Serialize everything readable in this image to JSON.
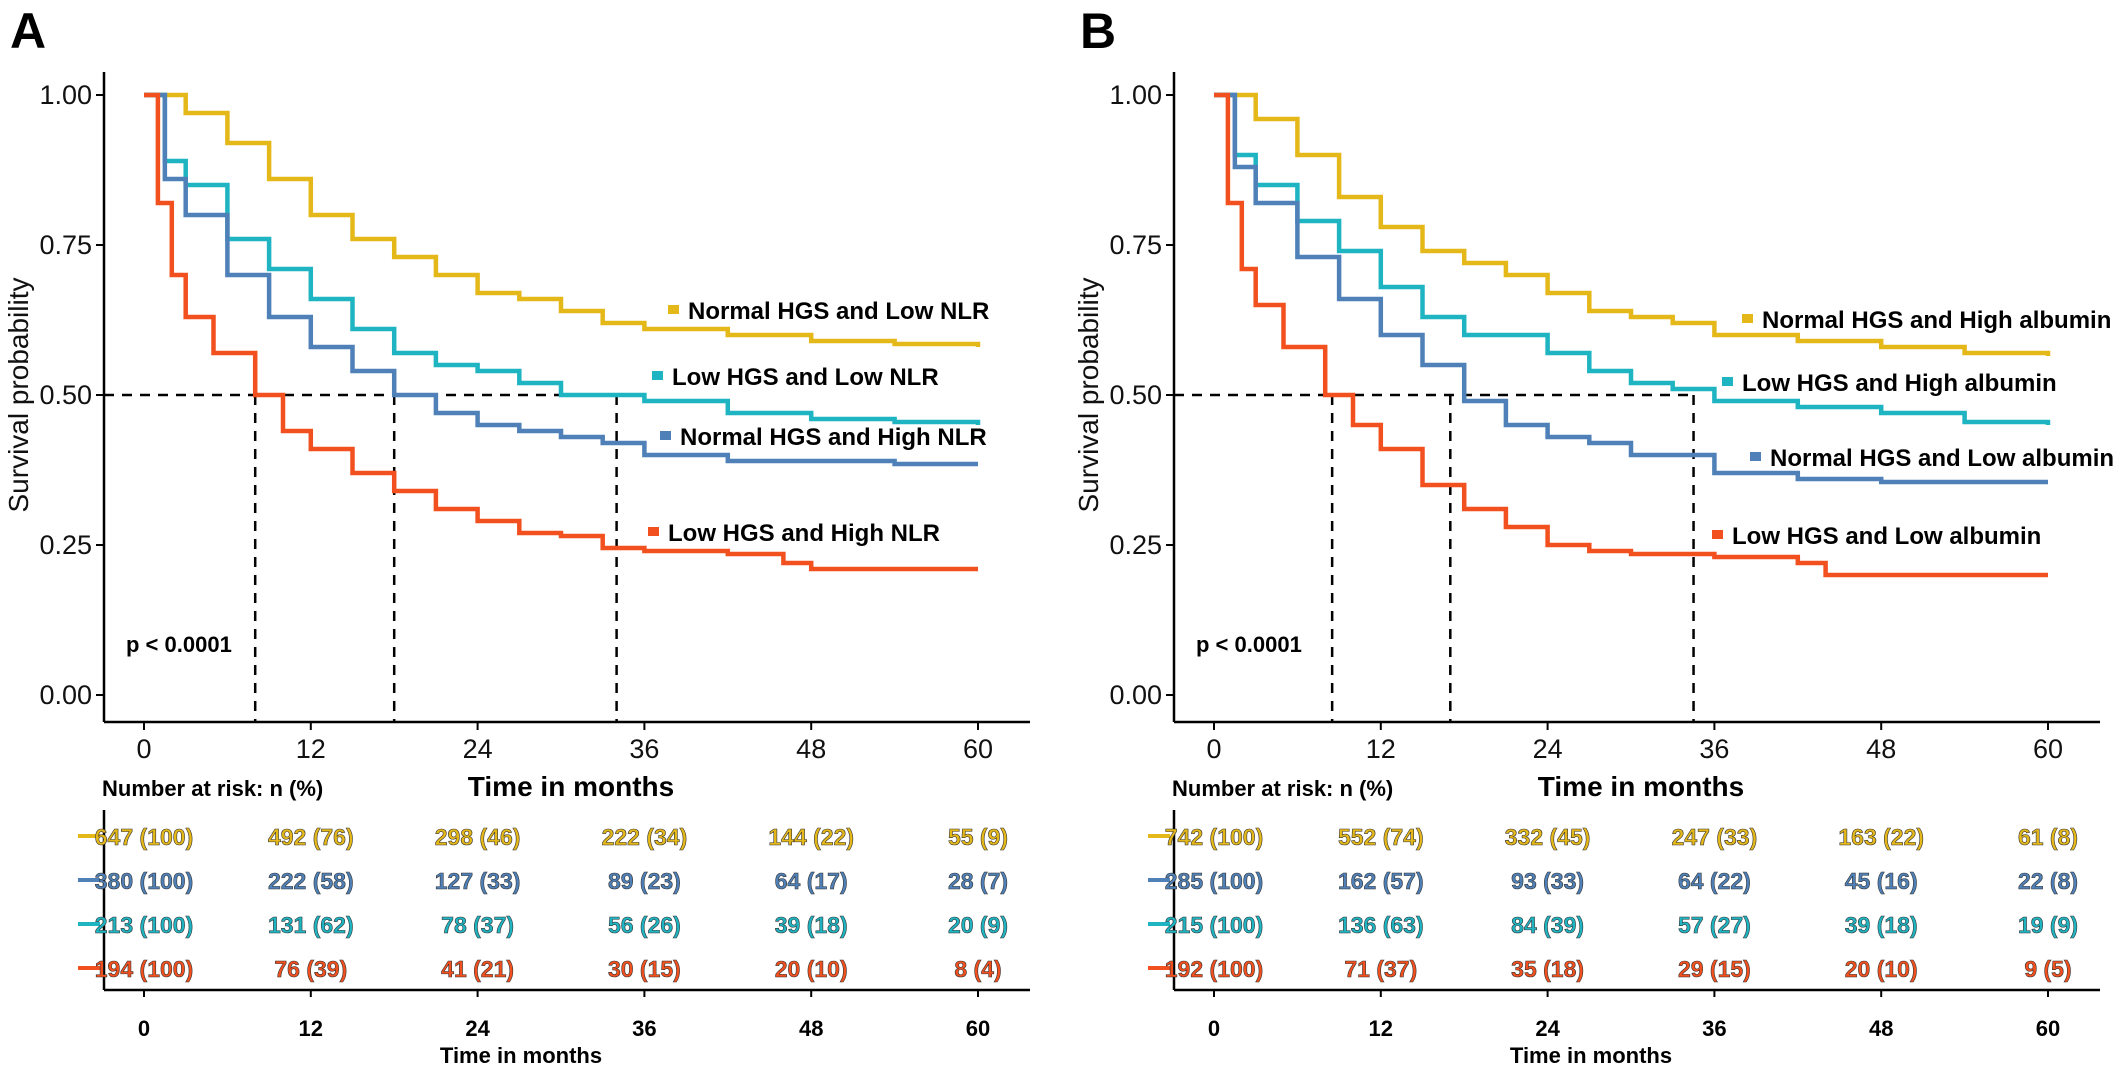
{
  "colors": {
    "gold": "#E5B81A",
    "steel": "#4F81B8",
    "teal": "#1FB4C2",
    "orange": "#F2501E"
  },
  "chart_data": [
    {
      "type": "line",
      "panel_label": "A",
      "ylabel": "Survival probability",
      "xlabel": "Time in months",
      "x_ticks": [
        0,
        12,
        24,
        36,
        48,
        60
      ],
      "y_ticks": [
        "0.00",
        "0.25",
        "0.50",
        "0.75",
        "1.00"
      ],
      "xlim": [
        0,
        60
      ],
      "ylim": [
        0,
        1
      ],
      "p_value": "p < 0.0001",
      "median_times": [
        8,
        18,
        34
      ],
      "series": [
        {
          "name": "Normal HGS and Low NLR",
          "color": "gold",
          "points": [
            [
              0,
              1.0
            ],
            [
              3,
              0.97
            ],
            [
              6,
              0.92
            ],
            [
              9,
              0.86
            ],
            [
              12,
              0.8
            ],
            [
              15,
              0.76
            ],
            [
              18,
              0.73
            ],
            [
              21,
              0.7
            ],
            [
              24,
              0.67
            ],
            [
              27,
              0.66
            ],
            [
              30,
              0.64
            ],
            [
              33,
              0.62
            ],
            [
              36,
              0.61
            ],
            [
              42,
              0.6
            ],
            [
              48,
              0.59
            ],
            [
              54,
              0.585
            ],
            [
              60,
              0.58
            ]
          ]
        },
        {
          "name": "Low HGS and Low NLR",
          "color": "teal",
          "points": [
            [
              0,
              1.0
            ],
            [
              1.5,
              0.89
            ],
            [
              3,
              0.85
            ],
            [
              6,
              0.76
            ],
            [
              9,
              0.71
            ],
            [
              12,
              0.66
            ],
            [
              15,
              0.61
            ],
            [
              18,
              0.57
            ],
            [
              21,
              0.55
            ],
            [
              24,
              0.54
            ],
            [
              27,
              0.52
            ],
            [
              30,
              0.5
            ],
            [
              33,
              0.5
            ],
            [
              36,
              0.49
            ],
            [
              42,
              0.47
            ],
            [
              48,
              0.46
            ],
            [
              54,
              0.455
            ],
            [
              60,
              0.45
            ]
          ]
        },
        {
          "name": "Normal HGS and High NLR",
          "color": "steel",
          "points": [
            [
              0,
              1.0
            ],
            [
              1.5,
              0.86
            ],
            [
              3,
              0.8
            ],
            [
              6,
              0.7
            ],
            [
              9,
              0.63
            ],
            [
              12,
              0.58
            ],
            [
              15,
              0.54
            ],
            [
              18,
              0.5
            ],
            [
              21,
              0.47
            ],
            [
              24,
              0.45
            ],
            [
              27,
              0.44
            ],
            [
              30,
              0.43
            ],
            [
              33,
              0.42
            ],
            [
              36,
              0.4
            ],
            [
              42,
              0.39
            ],
            [
              48,
              0.39
            ],
            [
              54,
              0.385
            ],
            [
              60,
              0.385
            ]
          ]
        },
        {
          "name": "Low HGS and  High NLR",
          "color": "orange",
          "points": [
            [
              0,
              1.0
            ],
            [
              1,
              0.82
            ],
            [
              2,
              0.7
            ],
            [
              3,
              0.63
            ],
            [
              5,
              0.57
            ],
            [
              8,
              0.5
            ],
            [
              10,
              0.44
            ],
            [
              12,
              0.41
            ],
            [
              15,
              0.37
            ],
            [
              18,
              0.34
            ],
            [
              21,
              0.31
            ],
            [
              24,
              0.29
            ],
            [
              27,
              0.27
            ],
            [
              30,
              0.265
            ],
            [
              33,
              0.245
            ],
            [
              36,
              0.24
            ],
            [
              42,
              0.235
            ],
            [
              46,
              0.22
            ],
            [
              48,
              0.21
            ],
            [
              60,
              0.21
            ]
          ]
        }
      ],
      "legend": [
        {
          "label": "Normal HGS and Low NLR",
          "color": "gold",
          "y": 0.64
        },
        {
          "label": "Low HGS and Low NLR",
          "color": "teal",
          "y": 0.53
        },
        {
          "label": "Normal HGS and High NLR",
          "color": "steel",
          "y": 0.43
        },
        {
          "label": "Low HGS and  High NLR",
          "color": "orange",
          "y": 0.27
        }
      ],
      "risk_table": {
        "header": "Number at risk: n (%)",
        "xlabel": "Time in months",
        "rows": [
          {
            "color": "gold",
            "values": [
              "647 (100)",
              "492 (76)",
              "298 (46)",
              "222 (34)",
              "144 (22)",
              "55 (9)"
            ]
          },
          {
            "color": "steel",
            "values": [
              "380 (100)",
              "222 (58)",
              "127 (33)",
              "89 (23)",
              "64 (17)",
              "28 (7)"
            ]
          },
          {
            "color": "teal",
            "values": [
              "213 (100)",
              "131 (62)",
              "78 (37)",
              "56 (26)",
              "39 (18)",
              "20 (9)"
            ]
          },
          {
            "color": "orange",
            "values": [
              "194 (100)",
              "76 (39)",
              "41 (21)",
              "30 (15)",
              "20 (10)",
              "8 (4)"
            ]
          }
        ]
      }
    },
    {
      "type": "line",
      "panel_label": "B",
      "ylabel": "Survival probability",
      "xlabel": "Time in months",
      "x_ticks": [
        0,
        12,
        24,
        36,
        48,
        60
      ],
      "y_ticks": [
        "0.00",
        "0.25",
        "0.50",
        "0.75",
        "1.00"
      ],
      "xlim": [
        0,
        60
      ],
      "ylim": [
        0,
        1
      ],
      "p_value": "p < 0.0001",
      "median_times": [
        8.5,
        17,
        34.5
      ],
      "series": [
        {
          "name": "Normal HGS and High albumin",
          "color": "gold",
          "points": [
            [
              0,
              1.0
            ],
            [
              3,
              0.96
            ],
            [
              6,
              0.9
            ],
            [
              9,
              0.83
            ],
            [
              12,
              0.78
            ],
            [
              15,
              0.74
            ],
            [
              18,
              0.72
            ],
            [
              21,
              0.7
            ],
            [
              24,
              0.67
            ],
            [
              27,
              0.64
            ],
            [
              30,
              0.63
            ],
            [
              33,
              0.62
            ],
            [
              36,
              0.6
            ],
            [
              42,
              0.59
            ],
            [
              48,
              0.58
            ],
            [
              54,
              0.57
            ],
            [
              60,
              0.565
            ]
          ]
        },
        {
          "name": "Low HGS and High albumin",
          "color": "teal",
          "points": [
            [
              0,
              1.0
            ],
            [
              1.5,
              0.9
            ],
            [
              3,
              0.85
            ],
            [
              6,
              0.79
            ],
            [
              9,
              0.74
            ],
            [
              12,
              0.68
            ],
            [
              15,
              0.63
            ],
            [
              18,
              0.6
            ],
            [
              21,
              0.6
            ],
            [
              24,
              0.57
            ],
            [
              27,
              0.54
            ],
            [
              30,
              0.52
            ],
            [
              33,
              0.51
            ],
            [
              36,
              0.49
            ],
            [
              42,
              0.48
            ],
            [
              48,
              0.47
            ],
            [
              54,
              0.455
            ],
            [
              60,
              0.45
            ]
          ]
        },
        {
          "name": "Normal HGS and Low albumin",
          "color": "steel",
          "points": [
            [
              0,
              1.0
            ],
            [
              1.5,
              0.88
            ],
            [
              3,
              0.82
            ],
            [
              6,
              0.73
            ],
            [
              9,
              0.66
            ],
            [
              12,
              0.6
            ],
            [
              15,
              0.55
            ],
            [
              18,
              0.49
            ],
            [
              21,
              0.45
            ],
            [
              24,
              0.43
            ],
            [
              27,
              0.42
            ],
            [
              30,
              0.4
            ],
            [
              33,
              0.4
            ],
            [
              36,
              0.37
            ],
            [
              42,
              0.36
            ],
            [
              48,
              0.355
            ],
            [
              54,
              0.355
            ],
            [
              60,
              0.355
            ]
          ]
        },
        {
          "name": "Low HGS and  Low albumin",
          "color": "orange",
          "points": [
            [
              0,
              1.0
            ],
            [
              1,
              0.82
            ],
            [
              2,
              0.71
            ],
            [
              3,
              0.65
            ],
            [
              5,
              0.58
            ],
            [
              8,
              0.5
            ],
            [
              10,
              0.45
            ],
            [
              12,
              0.41
            ],
            [
              15,
              0.35
            ],
            [
              18,
              0.31
            ],
            [
              21,
              0.28
            ],
            [
              24,
              0.25
            ],
            [
              27,
              0.24
            ],
            [
              30,
              0.235
            ],
            [
              33,
              0.235
            ],
            [
              36,
              0.23
            ],
            [
              42,
              0.22
            ],
            [
              44,
              0.2
            ],
            [
              48,
              0.2
            ],
            [
              60,
              0.2
            ]
          ]
        }
      ],
      "legend": [
        {
          "label": "Normal HGS and High albumin",
          "color": "gold",
          "y": 0.625
        },
        {
          "label": "Low HGS and High albumin",
          "color": "teal",
          "y": 0.52
        },
        {
          "label": "Normal HGS and Low albumin",
          "color": "steel",
          "y": 0.395
        },
        {
          "label": "Low HGS and  Low albumin",
          "color": "orange",
          "y": 0.265
        }
      ],
      "risk_table": {
        "header": "Number at risk: n (%)",
        "xlabel": "Time in months",
        "rows": [
          {
            "color": "gold",
            "values": [
              "742 (100)",
              "552 (74)",
              "332 (45)",
              "247 (33)",
              "163 (22)",
              "61 (8)"
            ]
          },
          {
            "color": "steel",
            "values": [
              "285 (100)",
              "162 (57)",
              "93 (33)",
              "64 (22)",
              "45 (16)",
              "22 (8)"
            ]
          },
          {
            "color": "teal",
            "values": [
              "215 (100)",
              "136 (63)",
              "84 (39)",
              "57 (27)",
              "39 (18)",
              "19 (9)"
            ]
          },
          {
            "color": "orange",
            "values": [
              "192 (100)",
              "71 (37)",
              "35 (18)",
              "29 (15)",
              "20 (10)",
              "9 (5)"
            ]
          }
        ]
      }
    }
  ]
}
